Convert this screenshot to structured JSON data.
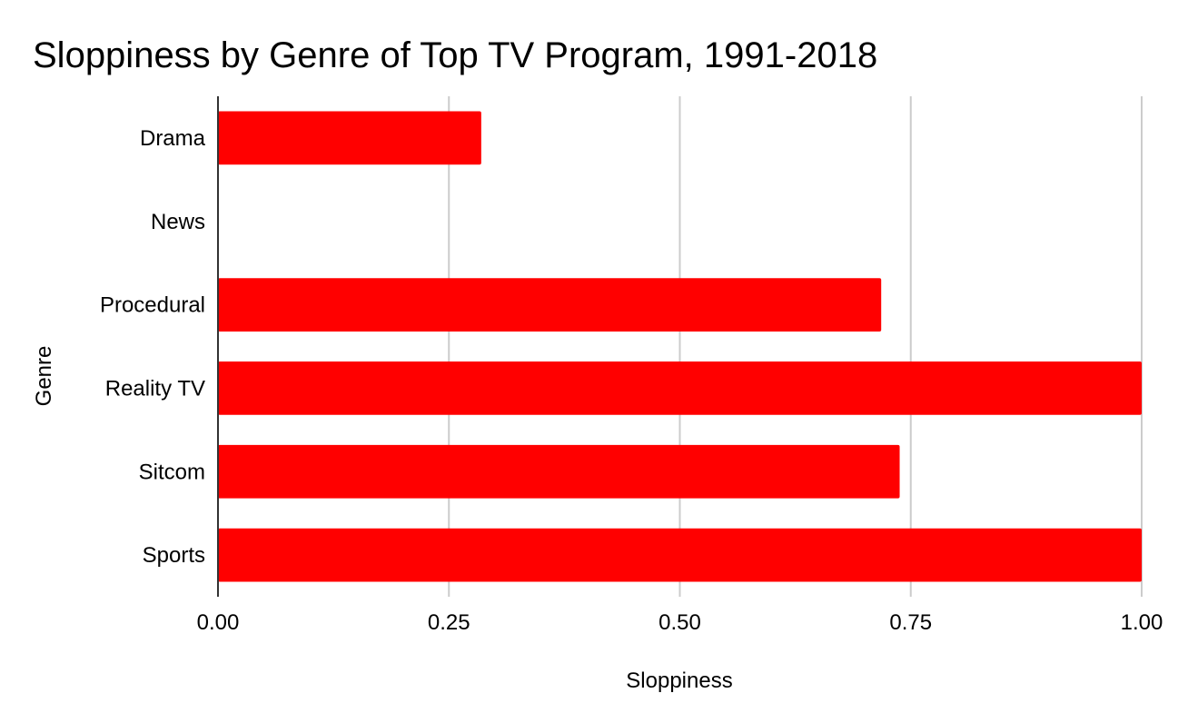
{
  "chart_data": {
    "type": "bar",
    "orientation": "horizontal",
    "title": "Sloppiness by Genre of Top TV Program, 1991-2018",
    "xlabel": "Sloppiness",
    "ylabel": "Genre",
    "xlim": [
      0,
      1
    ],
    "x_ticks": [
      0,
      0.25,
      0.5,
      0.75,
      1
    ],
    "x_tick_labels": [
      "0.00",
      "0.25",
      "0.50",
      "0.75",
      "1.00"
    ],
    "categories": [
      "Drama",
      "News",
      "Procedural",
      "Reality TV",
      "Sitcom",
      "Sports"
    ],
    "values": [
      0.285,
      0,
      0.718,
      1.0,
      0.738,
      1.0
    ],
    "bar_color": "#ff0000",
    "grid": true
  }
}
